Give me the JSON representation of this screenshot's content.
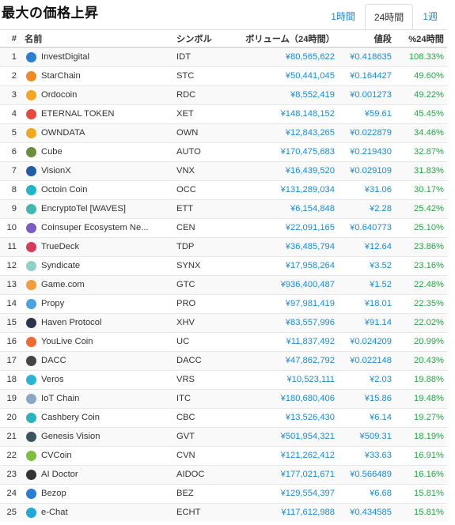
{
  "header": {
    "title": "最大の価格上昇",
    "tabs": [
      {
        "label": "1時間",
        "active": false
      },
      {
        "label": "24時間",
        "active": true
      },
      {
        "label": "1週",
        "active": false
      }
    ]
  },
  "table": {
    "columns": {
      "rank": "#",
      "name": "名前",
      "symbol": "シンボル",
      "volume": "ボリューム（24時間）",
      "price": "値段",
      "change": "%24時間"
    },
    "rows": [
      {
        "rank": "1",
        "name": "InvestDigital",
        "symbol": "IDT",
        "volume": "¥80,565,622",
        "price": "¥0.418635",
        "change": "108.33%",
        "icon": "investdigital-icon",
        "color": "#2a7fd4"
      },
      {
        "rank": "2",
        "name": "StarChain",
        "symbol": "STC",
        "volume": "¥50,441,045",
        "price": "¥0.164427",
        "change": "49.60%",
        "icon": "starchain-icon",
        "color": "#f08a24"
      },
      {
        "rank": "3",
        "name": "Ordocoin",
        "symbol": "RDC",
        "volume": "¥8,552,419",
        "price": "¥0.001273",
        "change": "49.22%",
        "icon": "ordocoin-icon",
        "color": "#f4a623"
      },
      {
        "rank": "4",
        "name": "ETERNAL TOKEN",
        "symbol": "XET",
        "volume": "¥148,148,152",
        "price": "¥59.61",
        "change": "45.45%",
        "icon": "eternal-token-icon",
        "color": "#e8493c"
      },
      {
        "rank": "5",
        "name": "OWNDATA",
        "symbol": "OWN",
        "volume": "¥12,843,265",
        "price": "¥0.022879",
        "change": "34.46%",
        "icon": "owndata-icon",
        "color": "#f2a81d"
      },
      {
        "rank": "6",
        "name": "Cube",
        "symbol": "AUTO",
        "volume": "¥170,475,683",
        "price": "¥0.219430",
        "change": "32.87%",
        "icon": "cube-icon",
        "color": "#6b8e3a"
      },
      {
        "rank": "7",
        "name": "VisionX",
        "symbol": "VNX",
        "volume": "¥16,439,520",
        "price": "¥0.029109",
        "change": "31.83%",
        "icon": "visionx-icon",
        "color": "#1e5fa8"
      },
      {
        "rank": "8",
        "name": "Octoin Coin",
        "symbol": "OCC",
        "volume": "¥131,289,034",
        "price": "¥31.06",
        "change": "30.17%",
        "icon": "octoin-icon",
        "color": "#21b5c9"
      },
      {
        "rank": "9",
        "name": "EncryptoTel [WAVES]",
        "symbol": "ETT",
        "volume": "¥6,154,848",
        "price": "¥2.28",
        "change": "25.42%",
        "icon": "encryptotel-icon",
        "color": "#3fb8b0"
      },
      {
        "rank": "10",
        "name": "Coinsuper Ecosystem Ne...",
        "symbol": "CEN",
        "volume": "¥22,091,165",
        "price": "¥0.640773",
        "change": "25.10%",
        "icon": "coinsuper-icon",
        "color": "#7a5cc4"
      },
      {
        "rank": "11",
        "name": "TrueDeck",
        "symbol": "TDP",
        "volume": "¥36,485,794",
        "price": "¥12.64",
        "change": "23.86%",
        "icon": "truedeck-icon",
        "color": "#d93b5a"
      },
      {
        "rank": "12",
        "name": "Syndicate",
        "symbol": "SYNX",
        "volume": "¥17,958,264",
        "price": "¥3.52",
        "change": "23.16%",
        "icon": "syndicate-icon",
        "color": "#8fd1c7"
      },
      {
        "rank": "13",
        "name": "Game.com",
        "symbol": "GTC",
        "volume": "¥936,400,487",
        "price": "¥1.52",
        "change": "22.48%",
        "icon": "game-com-icon",
        "color": "#f39c3a"
      },
      {
        "rank": "14",
        "name": "Propy",
        "symbol": "PRO",
        "volume": "¥97,981,419",
        "price": "¥18.01",
        "change": "22.35%",
        "icon": "propy-icon",
        "color": "#4aa3df"
      },
      {
        "rank": "15",
        "name": "Haven Protocol",
        "symbol": "XHV",
        "volume": "¥83,557,996",
        "price": "¥91.14",
        "change": "22.02%",
        "icon": "haven-protocol-icon",
        "color": "#2c3550"
      },
      {
        "rank": "16",
        "name": "YouLive Coin",
        "symbol": "UC",
        "volume": "¥11,837,492",
        "price": "¥0.024209",
        "change": "20.99%",
        "icon": "youlive-icon",
        "color": "#f06b2f"
      },
      {
        "rank": "17",
        "name": "DACC",
        "symbol": "DACC",
        "volume": "¥47,862,792",
        "price": "¥0.022148",
        "change": "20.43%",
        "icon": "dacc-icon",
        "color": "#444444"
      },
      {
        "rank": "18",
        "name": "Veros",
        "symbol": "VRS",
        "volume": "¥10,523,111",
        "price": "¥2.03",
        "change": "19.88%",
        "icon": "veros-icon",
        "color": "#29b6d6"
      },
      {
        "rank": "19",
        "name": "IoT Chain",
        "symbol": "ITC",
        "volume": "¥180,680,406",
        "price": "¥15.86",
        "change": "19.48%",
        "icon": "iot-chain-icon",
        "color": "#8aa6c8"
      },
      {
        "rank": "20",
        "name": "Cashbery Coin",
        "symbol": "CBC",
        "volume": "¥13,526,430",
        "price": "¥6.14",
        "change": "19.27%",
        "icon": "cashbery-icon",
        "color": "#2bb3c0"
      },
      {
        "rank": "21",
        "name": "Genesis Vision",
        "symbol": "GVT",
        "volume": "¥501,954,321",
        "price": "¥509.31",
        "change": "18.19%",
        "icon": "genesis-vision-icon",
        "color": "#3b5560"
      },
      {
        "rank": "22",
        "name": "CVCoin",
        "symbol": "CVN",
        "volume": "¥121,262,412",
        "price": "¥33.63",
        "change": "16.91%",
        "icon": "cvcoin-icon",
        "color": "#7fbf3f"
      },
      {
        "rank": "23",
        "name": "AI Doctor",
        "symbol": "AIDOC",
        "volume": "¥177,021,671",
        "price": "¥0.566489",
        "change": "16.16%",
        "icon": "ai-doctor-icon",
        "color": "#333333"
      },
      {
        "rank": "24",
        "name": "Bezop",
        "symbol": "BEZ",
        "volume": "¥129,554,397",
        "price": "¥6.68",
        "change": "15.81%",
        "icon": "bezop-icon",
        "color": "#2b7cd3"
      },
      {
        "rank": "25",
        "name": "e-Chat",
        "symbol": "ECHT",
        "volume": "¥117,612,988",
        "price": "¥0.434585",
        "change": "15.81%",
        "icon": "e-chat-icon",
        "color": "#1fa8d8"
      }
    ]
  }
}
